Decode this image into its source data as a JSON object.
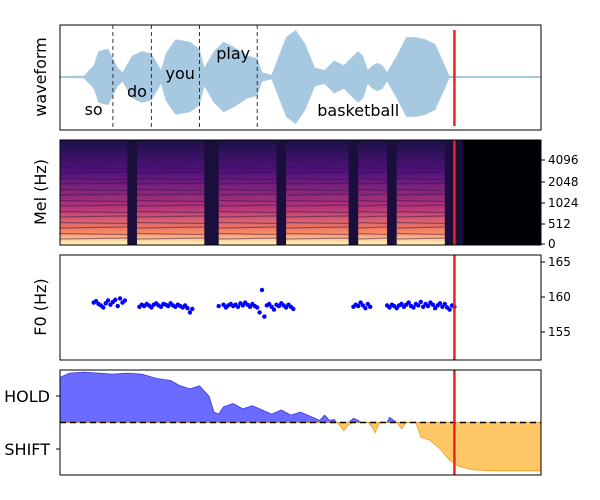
{
  "chart_data": [
    {
      "type": "area",
      "ylabel": "waveform",
      "words": [
        {
          "text": "so",
          "t": 0.07
        },
        {
          "text": "do",
          "t": 0.16
        },
        {
          "text": "you",
          "t": 0.25
        },
        {
          "text": "play",
          "t": 0.36
        },
        {
          "text": "basketball",
          "t": 0.62
        }
      ],
      "word_boundaries": [
        0.11,
        0.19,
        0.29,
        0.41
      ],
      "envelope": [
        [
          0.0,
          0.02
        ],
        [
          0.05,
          0.03
        ],
        [
          0.07,
          0.25
        ],
        [
          0.08,
          0.55
        ],
        [
          0.1,
          0.6
        ],
        [
          0.11,
          0.4
        ],
        [
          0.12,
          0.2
        ],
        [
          0.13,
          0.1
        ],
        [
          0.15,
          0.45
        ],
        [
          0.17,
          0.55
        ],
        [
          0.19,
          0.5
        ],
        [
          0.21,
          0.15
        ],
        [
          0.22,
          0.5
        ],
        [
          0.24,
          0.8
        ],
        [
          0.27,
          0.75
        ],
        [
          0.29,
          0.6
        ],
        [
          0.3,
          0.2
        ],
        [
          0.32,
          0.55
        ],
        [
          0.34,
          0.75
        ],
        [
          0.36,
          0.65
        ],
        [
          0.39,
          0.45
        ],
        [
          0.41,
          0.4
        ],
        [
          0.42,
          0.1
        ],
        [
          0.44,
          0.05
        ],
        [
          0.47,
          0.85
        ],
        [
          0.49,
          1.0
        ],
        [
          0.51,
          0.7
        ],
        [
          0.53,
          0.2
        ],
        [
          0.55,
          0.15
        ],
        [
          0.57,
          0.35
        ],
        [
          0.59,
          0.25
        ],
        [
          0.61,
          0.45
        ],
        [
          0.62,
          0.55
        ],
        [
          0.63,
          0.45
        ],
        [
          0.64,
          0.15
        ],
        [
          0.65,
          0.25
        ],
        [
          0.66,
          0.3
        ],
        [
          0.67,
          0.25
        ],
        [
          0.68,
          0.1
        ],
        [
          0.7,
          0.45
        ],
        [
          0.72,
          0.85
        ],
        [
          0.74,
          0.85
        ],
        [
          0.76,
          0.8
        ],
        [
          0.78,
          0.7
        ],
        [
          0.8,
          0.25
        ],
        [
          0.81,
          0.02
        ],
        [
          1.0,
          0.02
        ]
      ],
      "marker_t": 0.82,
      "color": "#a6c8e0"
    },
    {
      "type": "heatmap",
      "ylabel": "Mel (Hz)",
      "yticks": [
        "0",
        "512",
        "1024",
        "2048",
        "4096"
      ],
      "voiced_segments": [
        [
          0.0,
          0.14
        ],
        [
          0.16,
          0.3
        ],
        [
          0.33,
          0.45
        ],
        [
          0.47,
          0.6
        ],
        [
          0.62,
          0.68
        ],
        [
          0.7,
          0.8
        ]
      ],
      "silence_from": 0.82,
      "marker_t": 0.82
    },
    {
      "type": "scatter",
      "ylabel": "F0 (Hz)",
      "ylim": [
        151,
        166
      ],
      "yticks": [
        155,
        160,
        165
      ],
      "marker_t": 0.82,
      "point_color": "#0000ff",
      "points": [
        [
          0.07,
          159.2
        ],
        [
          0.075,
          159.4
        ],
        [
          0.08,
          159.0
        ],
        [
          0.085,
          158.8
        ],
        [
          0.09,
          158.5
        ],
        [
          0.095,
          159.1
        ],
        [
          0.1,
          159.5
        ],
        [
          0.105,
          158.9
        ],
        [
          0.11,
          159.3
        ],
        [
          0.115,
          159.6
        ],
        [
          0.12,
          158.7
        ],
        [
          0.125,
          159.8
        ],
        [
          0.13,
          159.2
        ],
        [
          0.135,
          159.5
        ],
        [
          0.165,
          158.6
        ],
        [
          0.17,
          158.9
        ],
        [
          0.175,
          158.7
        ],
        [
          0.18,
          159.0
        ],
        [
          0.185,
          158.8
        ],
        [
          0.19,
          158.5
        ],
        [
          0.195,
          158.9
        ],
        [
          0.2,
          159.1
        ],
        [
          0.205,
          158.8
        ],
        [
          0.21,
          158.6
        ],
        [
          0.215,
          159.0
        ],
        [
          0.22,
          158.9
        ],
        [
          0.225,
          158.7
        ],
        [
          0.23,
          159.1
        ],
        [
          0.235,
          158.8
        ],
        [
          0.24,
          158.6
        ],
        [
          0.245,
          158.9
        ],
        [
          0.25,
          158.7
        ],
        [
          0.255,
          158.5
        ],
        [
          0.26,
          158.8
        ],
        [
          0.265,
          158.4
        ],
        [
          0.27,
          157.8
        ],
        [
          0.275,
          158.3
        ],
        [
          0.33,
          158.7
        ],
        [
          0.34,
          158.9
        ],
        [
          0.345,
          158.5
        ],
        [
          0.35,
          158.8
        ],
        [
          0.355,
          159.0
        ],
        [
          0.36,
          158.7
        ],
        [
          0.365,
          158.9
        ],
        [
          0.37,
          158.6
        ],
        [
          0.375,
          159.1
        ],
        [
          0.38,
          158.8
        ],
        [
          0.385,
          159.2
        ],
        [
          0.39,
          158.9
        ],
        [
          0.395,
          158.6
        ],
        [
          0.4,
          159.0
        ],
        [
          0.405,
          158.7
        ],
        [
          0.41,
          158.5
        ],
        [
          0.415,
          157.8
        ],
        [
          0.42,
          161.0
        ],
        [
          0.425,
          157.2
        ],
        [
          0.43,
          158.8
        ],
        [
          0.435,
          159.0
        ],
        [
          0.44,
          158.6
        ],
        [
          0.445,
          158.2
        ],
        [
          0.45,
          158.9
        ],
        [
          0.455,
          158.7
        ],
        [
          0.46,
          159.1
        ],
        [
          0.465,
          158.8
        ],
        [
          0.47,
          158.5
        ],
        [
          0.475,
          158.9
        ],
        [
          0.48,
          158.6
        ],
        [
          0.485,
          158.3
        ],
        [
          0.61,
          158.6
        ],
        [
          0.615,
          158.9
        ],
        [
          0.62,
          158.7
        ],
        [
          0.625,
          159.2
        ],
        [
          0.63,
          158.8
        ],
        [
          0.635,
          158.4
        ],
        [
          0.64,
          159.0
        ],
        [
          0.645,
          158.6
        ],
        [
          0.68,
          158.8
        ],
        [
          0.685,
          158.5
        ],
        [
          0.69,
          158.9
        ],
        [
          0.695,
          158.7
        ],
        [
          0.7,
          158.4
        ],
        [
          0.705,
          158.8
        ],
        [
          0.71,
          159.0
        ],
        [
          0.715,
          158.6
        ],
        [
          0.72,
          158.9
        ],
        [
          0.725,
          159.2
        ],
        [
          0.73,
          158.7
        ],
        [
          0.735,
          158.5
        ],
        [
          0.74,
          159.0
        ],
        [
          0.745,
          158.8
        ],
        [
          0.75,
          159.3
        ],
        [
          0.755,
          158.6
        ],
        [
          0.76,
          159.0
        ],
        [
          0.765,
          158.7
        ],
        [
          0.77,
          159.2
        ],
        [
          0.775,
          158.9
        ],
        [
          0.78,
          158.4
        ],
        [
          0.785,
          158.8
        ],
        [
          0.79,
          159.1
        ],
        [
          0.795,
          158.6
        ],
        [
          0.8,
          159.0
        ],
        [
          0.805,
          158.5
        ],
        [
          0.81,
          158.2
        ],
        [
          0.815,
          158.8
        ],
        [
          0.82,
          158.6
        ]
      ]
    },
    {
      "type": "area",
      "yticks": [
        "HOLD",
        "SHIFT"
      ],
      "threshold": 0.5,
      "marker_t": 0.82,
      "hold_color": "#6b6bff",
      "shift_color": "#ffc766",
      "values": [
        [
          0.0,
          0.93
        ],
        [
          0.02,
          0.97
        ],
        [
          0.05,
          0.98
        ],
        [
          0.08,
          0.97
        ],
        [
          0.11,
          0.96
        ],
        [
          0.14,
          0.97
        ],
        [
          0.17,
          0.96
        ],
        [
          0.2,
          0.92
        ],
        [
          0.23,
          0.9
        ],
        [
          0.25,
          0.85
        ],
        [
          0.27,
          0.82
        ],
        [
          0.29,
          0.85
        ],
        [
          0.31,
          0.75
        ],
        [
          0.32,
          0.6
        ],
        [
          0.33,
          0.58
        ],
        [
          0.34,
          0.65
        ],
        [
          0.36,
          0.68
        ],
        [
          0.38,
          0.63
        ],
        [
          0.4,
          0.66
        ],
        [
          0.42,
          0.62
        ],
        [
          0.44,
          0.58
        ],
        [
          0.46,
          0.62
        ],
        [
          0.48,
          0.57
        ],
        [
          0.5,
          0.6
        ],
        [
          0.52,
          0.56
        ],
        [
          0.54,
          0.52
        ],
        [
          0.55,
          0.57
        ],
        [
          0.56,
          0.52
        ],
        [
          0.57,
          0.53
        ],
        [
          0.575,
          0.5
        ],
        [
          0.58,
          0.48
        ],
        [
          0.59,
          0.42
        ],
        [
          0.6,
          0.48
        ],
        [
          0.61,
          0.54
        ],
        [
          0.62,
          0.52
        ],
        [
          0.625,
          0.5
        ],
        [
          0.64,
          0.5
        ],
        [
          0.65,
          0.45
        ],
        [
          0.655,
          0.4
        ],
        [
          0.66,
          0.46
        ],
        [
          0.665,
          0.5
        ],
        [
          0.68,
          0.5
        ],
        [
          0.685,
          0.55
        ],
        [
          0.7,
          0.5
        ],
        [
          0.71,
          0.44
        ],
        [
          0.72,
          0.5
        ],
        [
          0.74,
          0.5
        ],
        [
          0.75,
          0.36
        ],
        [
          0.77,
          0.33
        ],
        [
          0.79,
          0.25
        ],
        [
          0.81,
          0.14
        ],
        [
          0.83,
          0.08
        ],
        [
          0.86,
          0.05
        ],
        [
          0.9,
          0.04
        ],
        [
          0.95,
          0.04
        ],
        [
          1.0,
          0.04
        ]
      ]
    }
  ]
}
